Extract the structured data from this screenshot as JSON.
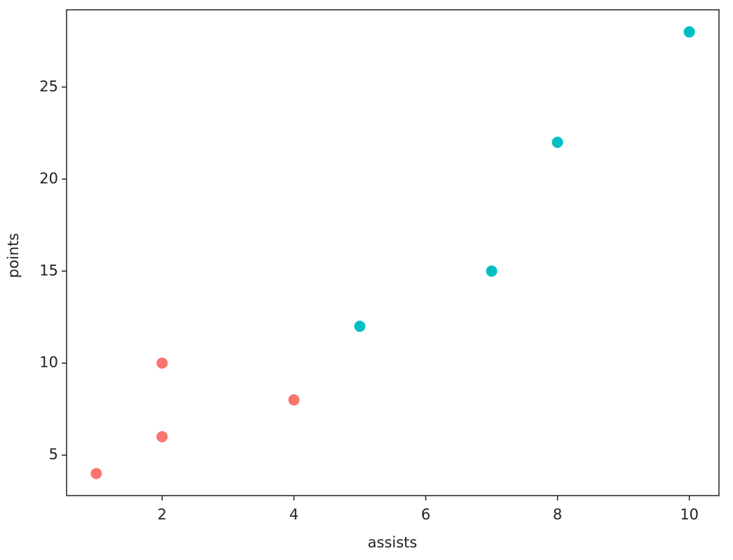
{
  "chart_data": {
    "type": "scatter",
    "x_label": "assists",
    "y_label": "points",
    "series": [
      {
        "color": "#f8766d",
        "x": [
          1,
          2,
          2,
          4
        ],
        "values": [
          4,
          6,
          10,
          8
        ]
      },
      {
        "color": "#00bfc4",
        "x": [
          5,
          7,
          8,
          10
        ],
        "values": [
          12,
          15,
          22,
          28
        ]
      }
    ],
    "xlim": [
      0.55,
      10.45
    ],
    "ylim": [
      2.8,
      29.2
    ],
    "xticks": [
      2,
      4,
      6,
      8,
      10
    ],
    "yticks": [
      5,
      10,
      15,
      20,
      25
    ],
    "grid": false
  }
}
